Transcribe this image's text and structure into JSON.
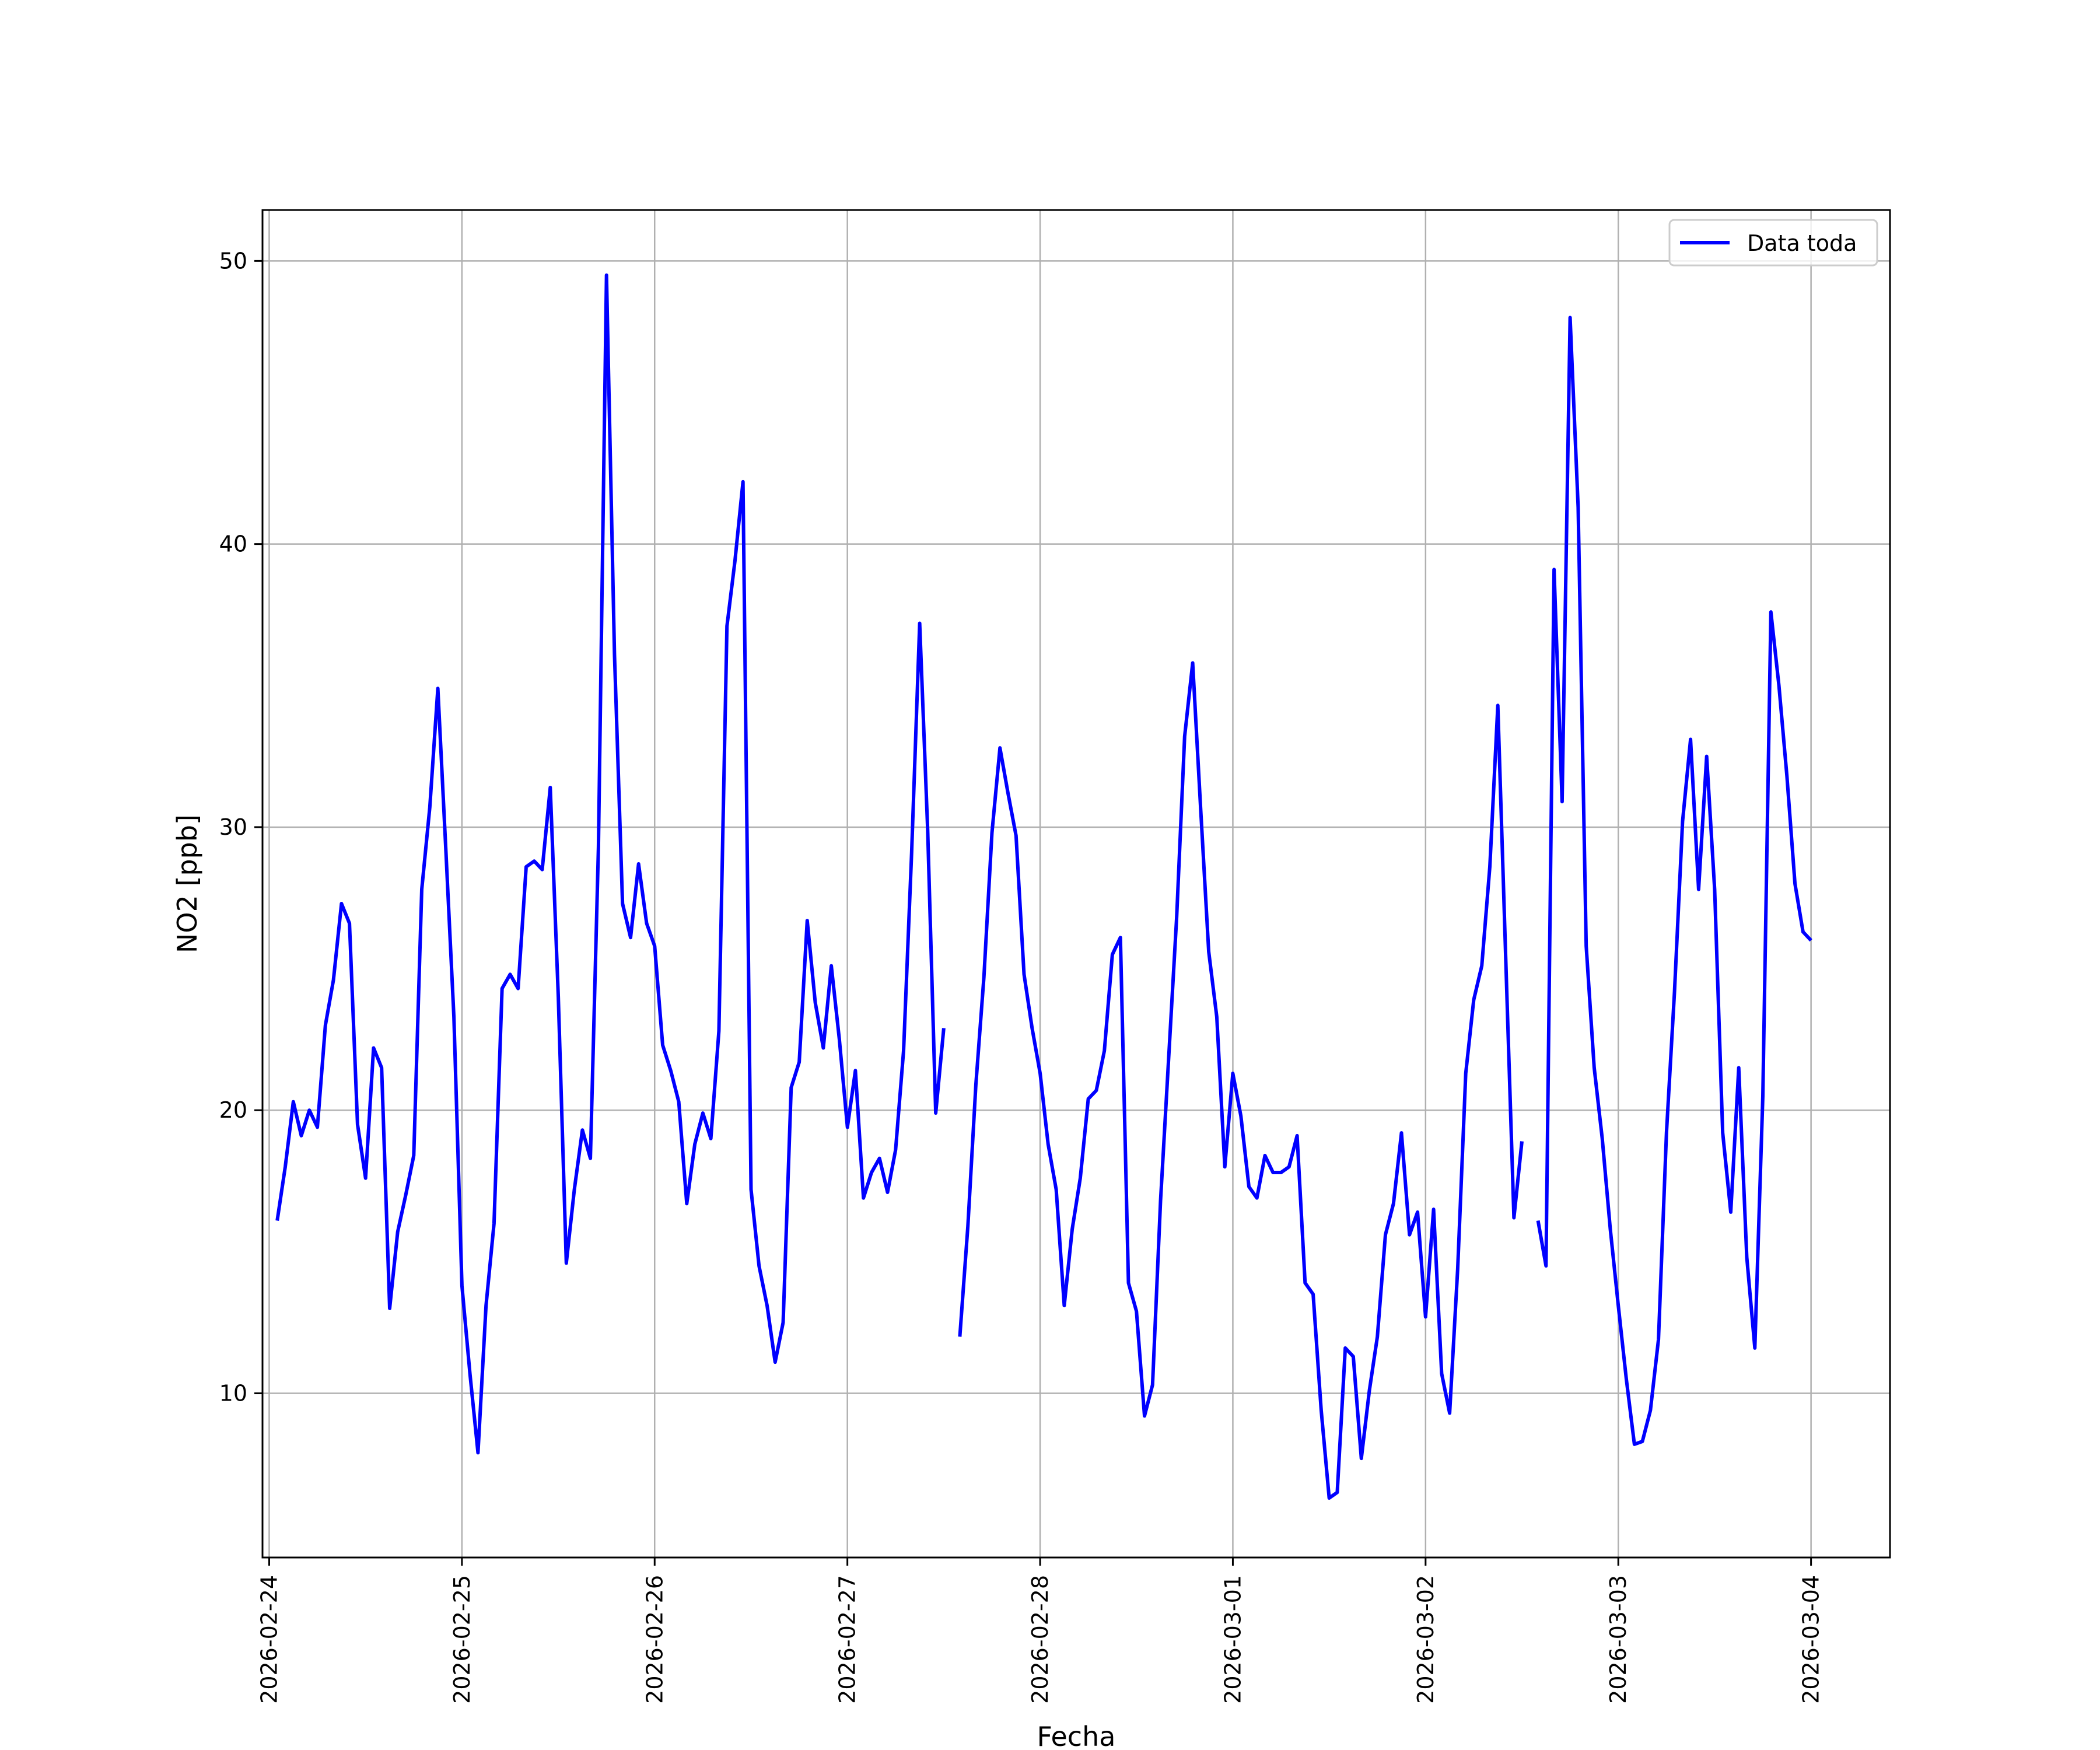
{
  "chart_data": {
    "type": "line",
    "title": "",
    "xlabel": "Fecha",
    "ylabel": "NO2 [ppb]",
    "ylabel_unit": "ppb",
    "x_type": "date",
    "xlim": [
      "2026-02-23T23:10",
      "2026-03-04T09:50"
    ],
    "ylim": [
      4.2,
      51.8
    ],
    "x_ticks": [
      "2026-02-24",
      "2026-02-25",
      "2026-02-26",
      "2026-02-27",
      "2026-02-28",
      "2026-03-01",
      "2026-03-02",
      "2026-03-03",
      "2026-03-04"
    ],
    "y_ticks": [
      10,
      20,
      30,
      40,
      50
    ],
    "grid": true,
    "legend_position": "top-right",
    "colors": {
      "line": "#0000ff",
      "grid": "#b0b0b0",
      "frame": "#000000"
    },
    "series": [
      {
        "name": "Data toda",
        "segments": [
          [
            [
              "2026-02-24T01:00",
              16.1
            ],
            [
              "2026-02-24T02:00",
              18
            ],
            [
              "2026-02-24T03:00",
              20.3
            ],
            [
              "2026-02-24T04:00",
              19.1
            ],
            [
              "2026-02-24T05:00",
              20
            ],
            [
              "2026-02-24T06:00",
              19.4
            ],
            [
              "2026-02-24T07:00",
              23
            ],
            [
              "2026-02-24T08:00",
              24.6
            ],
            [
              "2026-02-24T09:00",
              27.3
            ],
            [
              "2026-02-24T10:00",
              26.6
            ],
            [
              "2026-02-24T11:00",
              19.5
            ],
            [
              "2026-02-24T12:00",
              17.6
            ],
            [
              "2026-02-24T13:00",
              22.2
            ],
            [
              "2026-02-24T14:00",
              21.5
            ],
            [
              "2026-02-24T15:00",
              13
            ],
            [
              "2026-02-24T16:00",
              15.7
            ],
            [
              "2026-02-24T17:00",
              17
            ],
            [
              "2026-02-24T18:00",
              18.4
            ],
            [
              "2026-02-24T19:00",
              27.8
            ],
            [
              "2026-02-24T20:00",
              30.7
            ],
            [
              "2026-02-24T21:00",
              34.9
            ],
            [
              "2026-02-24T22:00",
              29.2
            ],
            [
              "2026-02-24T23:00",
              23.3
            ],
            [
              "2026-02-25T00:00",
              13.8
            ],
            [
              "2026-02-25T01:00",
              10.7
            ],
            [
              "2026-02-25T02:00",
              7.9
            ],
            [
              "2026-02-25T03:00",
              13.1
            ],
            [
              "2026-02-25T04:00",
              16
            ],
            [
              "2026-02-25T05:00",
              24.3
            ],
            [
              "2026-02-25T06:00",
              24.8
            ],
            [
              "2026-02-25T07:00",
              24.3
            ],
            [
              "2026-02-25T08:00",
              28.6
            ],
            [
              "2026-02-25T09:00",
              28.8
            ],
            [
              "2026-02-25T10:00",
              28.5
            ],
            [
              "2026-02-25T11:00",
              31.4
            ],
            [
              "2026-02-25T12:00",
              24
            ],
            [
              "2026-02-25T13:00",
              14.6
            ],
            [
              "2026-02-25T14:00",
              17.2
            ],
            [
              "2026-02-25T15:00",
              19.3
            ],
            [
              "2026-02-25T16:00",
              18.3
            ],
            [
              "2026-02-25T17:00",
              29.3
            ],
            [
              "2026-02-25T18:00",
              49.5
            ],
            [
              "2026-02-25T19:00",
              36.1
            ],
            [
              "2026-02-25T20:00",
              27.3
            ],
            [
              "2026-02-25T21:00",
              26.1
            ],
            [
              "2026-02-25T22:00",
              28.7
            ],
            [
              "2026-02-25T23:00",
              26.6
            ],
            [
              "2026-02-26T00:00",
              25.8
            ],
            [
              "2026-02-26T01:00",
              22.3
            ],
            [
              "2026-02-26T02:00",
              21.4
            ],
            [
              "2026-02-26T03:00",
              20.3
            ],
            [
              "2026-02-26T04:00",
              16.7
            ],
            [
              "2026-02-26T05:00",
              18.8
            ],
            [
              "2026-02-26T06:00",
              19.9
            ],
            [
              "2026-02-26T07:00",
              19
            ],
            [
              "2026-02-26T08:00",
              22.8
            ],
            [
              "2026-02-26T09:00",
              37.1
            ],
            [
              "2026-02-26T10:00",
              39.4
            ],
            [
              "2026-02-26T11:00",
              42.2
            ],
            [
              "2026-02-26T12:00",
              17.2
            ],
            [
              "2026-02-26T13:00",
              14.5
            ],
            [
              "2026-02-26T14:00",
              13.1
            ],
            [
              "2026-02-26T15:00",
              11.1
            ],
            [
              "2026-02-26T16:00",
              12.5
            ],
            [
              "2026-02-26T17:00",
              20.8
            ],
            [
              "2026-02-26T18:00",
              21.7
            ],
            [
              "2026-02-26T19:00",
              26.7
            ],
            [
              "2026-02-26T20:00",
              23.8
            ],
            [
              "2026-02-26T21:00",
              22.2
            ],
            [
              "2026-02-26T22:00",
              25.1
            ],
            [
              "2026-02-26T23:00",
              22.5
            ],
            [
              "2026-02-27T00:00",
              19.4
            ],
            [
              "2026-02-27T01:00",
              21.4
            ],
            [
              "2026-02-27T02:00",
              16.9
            ],
            [
              "2026-02-27T03:00",
              17.8
            ],
            [
              "2026-02-27T04:00",
              18.3
            ],
            [
              "2026-02-27T05:00",
              17.1
            ],
            [
              "2026-02-27T06:00",
              18.6
            ],
            [
              "2026-02-27T07:00",
              22.1
            ],
            [
              "2026-02-27T08:00",
              29.1
            ],
            [
              "2026-02-27T09:00",
              37.2
            ],
            [
              "2026-02-27T10:00",
              29.9
            ],
            [
              "2026-02-27T11:00",
              19.9
            ],
            [
              "2026-02-27T12:00",
              22.9
            ]
          ],
          [
            [
              "2026-02-27T14:00",
              12
            ],
            [
              "2026-02-27T15:00",
              15.9
            ],
            [
              "2026-02-27T16:00",
              20.9
            ],
            [
              "2026-02-27T17:00",
              24.7
            ],
            [
              "2026-02-27T18:00",
              29.8
            ],
            [
              "2026-02-27T19:00",
              32.8
            ],
            [
              "2026-02-27T20:00",
              31.2
            ],
            [
              "2026-02-27T21:00",
              29.7
            ],
            [
              "2026-02-27T22:00",
              24.8
            ],
            [
              "2026-02-27T23:00",
              22.9
            ],
            [
              "2026-02-28T00:00",
              21.3
            ],
            [
              "2026-02-28T01:00",
              18.8
            ],
            [
              "2026-02-28T02:00",
              17.2
            ],
            [
              "2026-02-28T03:00",
              13.1
            ],
            [
              "2026-02-28T04:00",
              15.8
            ],
            [
              "2026-02-28T05:00",
              17.6
            ],
            [
              "2026-02-28T06:00",
              20.4
            ],
            [
              "2026-02-28T07:00",
              20.7
            ],
            [
              "2026-02-28T08:00",
              22.1
            ],
            [
              "2026-02-28T09:00",
              25.5
            ],
            [
              "2026-02-28T10:00",
              26.1
            ],
            [
              "2026-02-28T11:00",
              13.9
            ],
            [
              "2026-02-28T12:00",
              12.9
            ],
            [
              "2026-02-28T13:00",
              9.2
            ],
            [
              "2026-02-28T14:00",
              10.3
            ],
            [
              "2026-02-28T15:00",
              16.8
            ],
            [
              "2026-02-28T16:00",
              21.8
            ],
            [
              "2026-02-28T17:00",
              26.8
            ],
            [
              "2026-02-28T18:00",
              33.2
            ],
            [
              "2026-02-28T19:00",
              35.8
            ],
            [
              "2026-02-28T20:00",
              30.6
            ],
            [
              "2026-02-28T21:00",
              25.6
            ],
            [
              "2026-02-28T22:00",
              23.3
            ],
            [
              "2026-02-28T23:00",
              18
            ],
            [
              "2026-03-01T00:00",
              21.3
            ],
            [
              "2026-03-01T01:00",
              19.8
            ],
            [
              "2026-03-01T02:00",
              17.3
            ],
            [
              "2026-03-01T03:00",
              16.9
            ],
            [
              "2026-03-01T04:00",
              18.4
            ],
            [
              "2026-03-01T05:00",
              17.8
            ],
            [
              "2026-03-01T06:00",
              17.8
            ],
            [
              "2026-03-01T07:00",
              18
            ],
            [
              "2026-03-01T08:00",
              19.1
            ],
            [
              "2026-03-01T09:00",
              13.9
            ],
            [
              "2026-03-01T10:00",
              13.5
            ],
            [
              "2026-03-01T11:00",
              9.4
            ],
            [
              "2026-03-01T12:00",
              6.3
            ],
            [
              "2026-03-01T13:00",
              6.5
            ],
            [
              "2026-03-01T14:00",
              11.6
            ],
            [
              "2026-03-01T15:00",
              11.3
            ],
            [
              "2026-03-01T16:00",
              7.7
            ],
            [
              "2026-03-01T17:00",
              10.1
            ],
            [
              "2026-03-01T18:00",
              12
            ],
            [
              "2026-03-01T19:00",
              15.6
            ],
            [
              "2026-03-01T20:00",
              16.7
            ],
            [
              "2026-03-01T21:00",
              19.2
            ],
            [
              "2026-03-01T22:00",
              15.6
            ],
            [
              "2026-03-01T23:00",
              16.4
            ],
            [
              "2026-03-02T00:00",
              12.7
            ],
            [
              "2026-03-02T01:00",
              16.5
            ],
            [
              "2026-03-02T02:00",
              10.7
            ],
            [
              "2026-03-02T03:00",
              9.3
            ],
            [
              "2026-03-02T04:00",
              14.4
            ],
            [
              "2026-03-02T05:00",
              21.3
            ],
            [
              "2026-03-02T06:00",
              23.9
            ],
            [
              "2026-03-02T07:00",
              25.1
            ],
            [
              "2026-03-02T08:00",
              28.6
            ],
            [
              "2026-03-02T09:00",
              34.3
            ],
            [
              "2026-03-02T10:00",
              25.2
            ],
            [
              "2026-03-02T11:00",
              16.2
            ],
            [
              "2026-03-02T12:00",
              18.9
            ]
          ],
          [
            [
              "2026-03-02T14:00",
              16.1
            ],
            [
              "2026-03-02T15:00",
              14.5
            ],
            [
              "2026-03-02T16:00",
              39.1
            ],
            [
              "2026-03-02T17:00",
              30.9
            ],
            [
              "2026-03-02T18:00",
              48
            ],
            [
              "2026-03-02T19:00",
              41.3
            ],
            [
              "2026-03-02T20:00",
              25.8
            ],
            [
              "2026-03-02T21:00",
              21.5
            ],
            [
              "2026-03-02T22:00",
              19
            ],
            [
              "2026-03-02T23:00",
              15.8
            ],
            [
              "2026-03-03T00:00",
              13.1
            ],
            [
              "2026-03-03T01:00",
              10.5
            ],
            [
              "2026-03-03T02:00",
              8.2
            ],
            [
              "2026-03-03T03:00",
              8.3
            ],
            [
              "2026-03-03T04:00",
              9.4
            ],
            [
              "2026-03-03T05:00",
              11.9
            ],
            [
              "2026-03-03T06:00",
              19.2
            ],
            [
              "2026-03-03T07:00",
              24.2
            ],
            [
              "2026-03-03T08:00",
              30.2
            ],
            [
              "2026-03-03T09:00",
              33.1
            ],
            [
              "2026-03-03T10:00",
              27.8
            ],
            [
              "2026-03-03T11:00",
              32.5
            ],
            [
              "2026-03-03T12:00",
              27.8
            ],
            [
              "2026-03-03T13:00",
              19.2
            ],
            [
              "2026-03-03T14:00",
              16.4
            ],
            [
              "2026-03-03T15:00",
              21.5
            ],
            [
              "2026-03-03T16:00",
              14.8
            ],
            [
              "2026-03-03T17:00",
              11.6
            ],
            [
              "2026-03-03T18:00",
              20.5
            ],
            [
              "2026-03-03T19:00",
              37.6
            ],
            [
              "2026-03-03T20:00",
              35
            ],
            [
              "2026-03-03T21:00",
              31.8
            ],
            [
              "2026-03-03T22:00",
              28
            ],
            [
              "2026-03-03T23:00",
              26.3
            ],
            [
              "2026-03-04T00:00",
              26
            ]
          ]
        ]
      }
    ]
  }
}
